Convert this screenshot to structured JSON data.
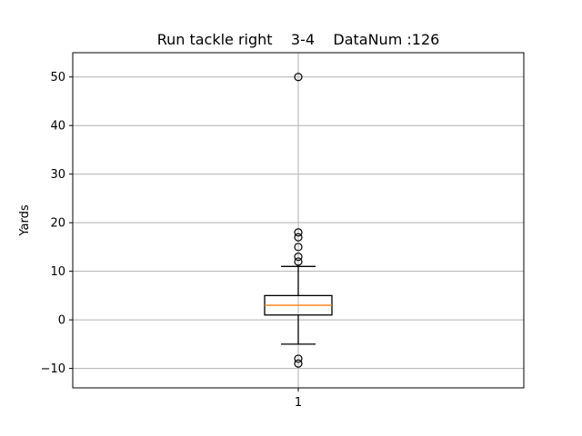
{
  "chart_data": {
    "type": "boxplot",
    "title": "Run tackle right    3-4    DataNum :126",
    "xlabel": "",
    "ylabel": "Yards",
    "categories": [
      "1"
    ],
    "ylim": [
      -14,
      55
    ],
    "yticks": [
      -10,
      0,
      10,
      20,
      30,
      40,
      50
    ],
    "ytick_labels": [
      "−10",
      "0",
      "10",
      "20",
      "30",
      "40",
      "50"
    ],
    "grid": true,
    "boxes": [
      {
        "category": "1",
        "whisker_low": -5,
        "q1": 1,
        "median": 3,
        "q3": 5,
        "whisker_high": 11,
        "outliers": [
          50,
          18,
          17,
          15,
          13,
          12,
          -8,
          -9
        ]
      }
    ],
    "colors": {
      "box": "#000000",
      "median": "#ff7f0e",
      "grid": "#b0b0b0",
      "axes": "#000000"
    }
  }
}
